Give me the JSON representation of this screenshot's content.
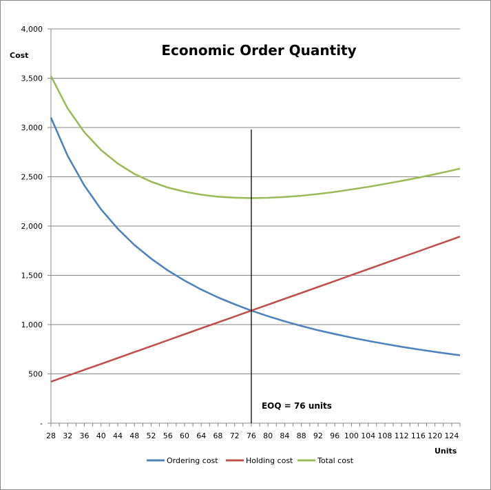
{
  "chart_data": {
    "type": "line",
    "title": "Economic Order Quantity",
    "xlabel": "Units",
    "ylabel": "Cost",
    "ylim": [
      0,
      4000
    ],
    "xlim": [
      28,
      126
    ],
    "y_ticks": [
      0,
      500,
      1000,
      1500,
      2000,
      2500,
      3000,
      3500,
      4000
    ],
    "y_tick_labels": [
      "-",
      "500",
      "1,000",
      "1,500",
      "2,000",
      "2,500",
      "3,000",
      "3,500",
      "4,000"
    ],
    "x_tick_labels": [
      "28",
      "32",
      "36",
      "40",
      "44",
      "48",
      "52",
      "56",
      "60",
      "64",
      "68",
      "72",
      "76",
      "80",
      "84",
      "88",
      "92",
      "96",
      "100",
      "104",
      "108",
      "112",
      "116",
      "120",
      "124"
    ],
    "grid": "horizontal",
    "legend_position": "bottom",
    "annotation": {
      "text": "EOQ = 76 units",
      "x": 76
    },
    "x": [
      28,
      32,
      36,
      40,
      44,
      48,
      52,
      56,
      60,
      64,
      68,
      72,
      76,
      80,
      84,
      88,
      92,
      96,
      100,
      104,
      108,
      112,
      116,
      120,
      124,
      126
    ],
    "series": [
      {
        "name": "Ordering cost",
        "color": "#4F81BD",
        "values": [
          3100,
          2713,
          2411,
          2170,
          1973,
          1808,
          1669,
          1550,
          1447,
          1356,
          1276,
          1206,
          1142,
          1085,
          1033,
          986,
          943,
          904,
          868,
          835,
          804,
          775,
          748,
          723,
          700,
          689
        ]
      },
      {
        "name": "Holding cost",
        "color": "#C0504D",
        "values": [
          421,
          481,
          541,
          601,
          661,
          721,
          781,
          841,
          902,
          962,
          1022,
          1082,
          1142,
          1202,
          1262,
          1322,
          1382,
          1442,
          1503,
          1563,
          1623,
          1683,
          1743,
          1803,
          1863,
          1894
        ]
      },
      {
        "name": "Total cost",
        "color": "#9BBB59",
        "values": [
          3521,
          3194,
          2952,
          2771,
          2634,
          2529,
          2450,
          2391,
          2349,
          2318,
          2298,
          2288,
          2284,
          2287,
          2295,
          2308,
          2325,
          2346,
          2371,
          2398,
          2427,
          2458,
          2491,
          2526,
          2563,
          2583
        ]
      }
    ]
  },
  "legend": {
    "items": [
      {
        "label": "Ordering cost",
        "color": "#4F81BD"
      },
      {
        "label": "Holding cost",
        "color": "#C0504D"
      },
      {
        "label": "Total cost",
        "color": "#9BBB59"
      }
    ]
  }
}
